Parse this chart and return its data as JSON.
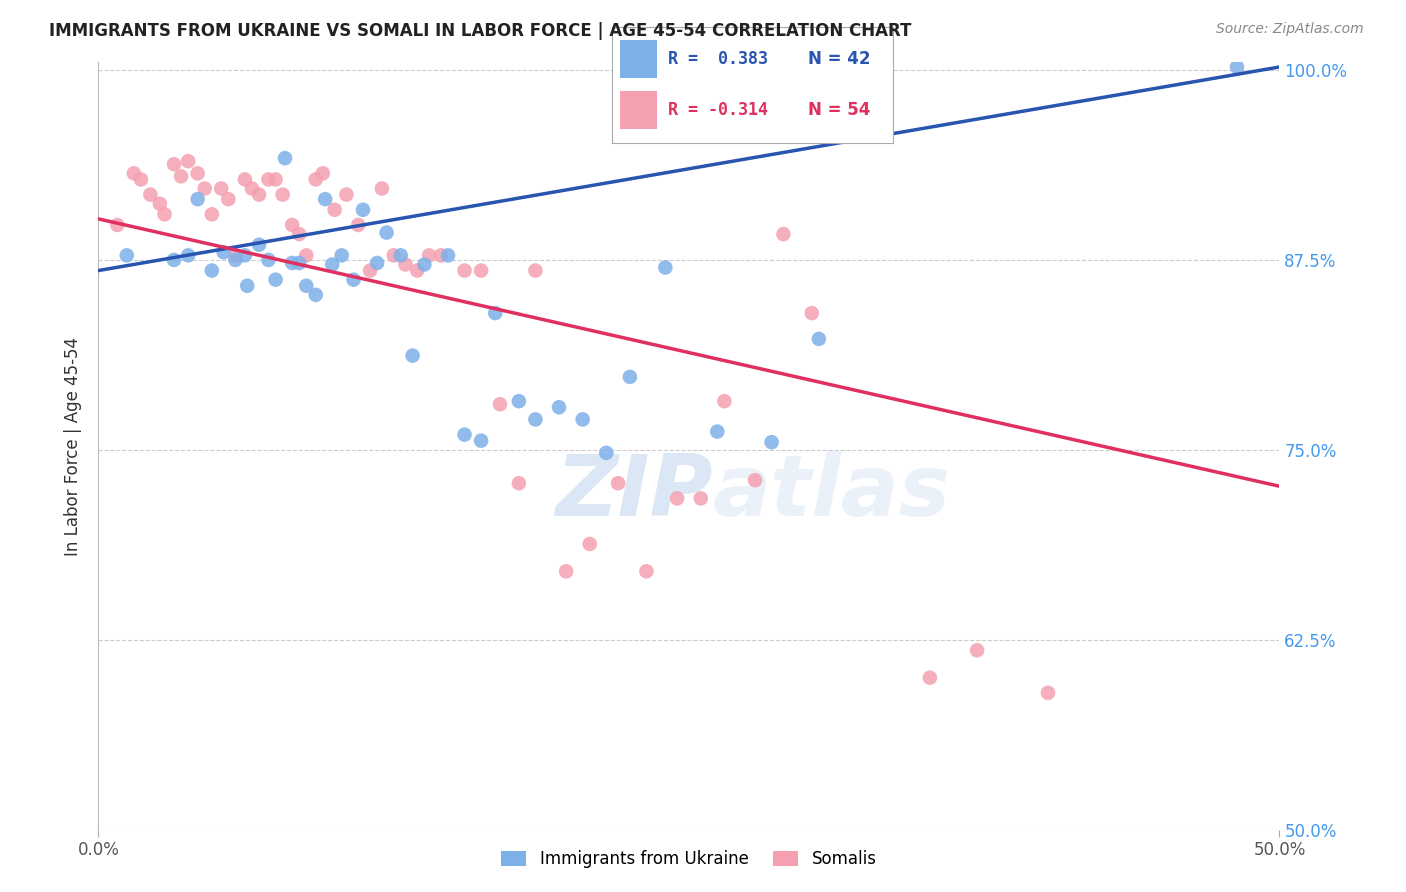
{
  "title": "IMMIGRANTS FROM UKRAINE VS SOMALI IN LABOR FORCE | AGE 45-54 CORRELATION CHART",
  "source": "Source: ZipAtlas.com",
  "ylabel": "In Labor Force | Age 45-54",
  "x_min": 0.0,
  "x_max": 0.5,
  "y_min": 0.5,
  "y_max": 1.005,
  "y_tick_labels": [
    "50.0%",
    "62.5%",
    "75.0%",
    "87.5%",
    "100.0%"
  ],
  "y_tick_values": [
    0.5,
    0.625,
    0.75,
    0.875,
    1.0
  ],
  "ukraine_color": "#7EB0E8",
  "somali_color": "#F4A0B0",
  "ukraine_line_color": "#2855B0",
  "somali_line_color": "#E03060",
  "legend_R_ukraine": "R =  0.383",
  "legend_N_ukraine": "N = 42",
  "legend_R_somali": "R = -0.314",
  "legend_N_somali": "N = 54",
  "watermark_zip": "ZIP",
  "watermark_atlas": "atlas",
  "ukraine_line_x0": 0.0,
  "ukraine_line_y0": 0.868,
  "ukraine_line_x1": 0.5,
  "ukraine_line_y1": 1.002,
  "somali_line_x0": 0.0,
  "somali_line_y0": 0.902,
  "somali_line_x1": 0.5,
  "somali_line_y1": 0.726,
  "ukraine_x": [
    0.012,
    0.032,
    0.038,
    0.042,
    0.048,
    0.053,
    0.058,
    0.062,
    0.063,
    0.068,
    0.072,
    0.075,
    0.079,
    0.082,
    0.085,
    0.088,
    0.092,
    0.096,
    0.099,
    0.103,
    0.108,
    0.112,
    0.118,
    0.122,
    0.128,
    0.133,
    0.138,
    0.148,
    0.155,
    0.162,
    0.168,
    0.178,
    0.185,
    0.195,
    0.205,
    0.215,
    0.225,
    0.24,
    0.262,
    0.285,
    0.305,
    0.482
  ],
  "ukraine_y": [
    0.878,
    0.875,
    0.878,
    0.915,
    0.868,
    0.88,
    0.875,
    0.878,
    0.858,
    0.885,
    0.875,
    0.862,
    0.942,
    0.873,
    0.873,
    0.858,
    0.852,
    0.915,
    0.872,
    0.878,
    0.862,
    0.908,
    0.873,
    0.893,
    0.878,
    0.812,
    0.872,
    0.878,
    0.76,
    0.756,
    0.84,
    0.782,
    0.77,
    0.778,
    0.77,
    0.748,
    0.798,
    0.87,
    0.762,
    0.755,
    0.823,
    1.002
  ],
  "somali_x": [
    0.008,
    0.015,
    0.018,
    0.022,
    0.026,
    0.028,
    0.032,
    0.035,
    0.038,
    0.042,
    0.045,
    0.048,
    0.052,
    0.055,
    0.058,
    0.062,
    0.065,
    0.068,
    0.072,
    0.075,
    0.078,
    0.082,
    0.085,
    0.088,
    0.092,
    0.095,
    0.1,
    0.105,
    0.11,
    0.115,
    0.12,
    0.125,
    0.13,
    0.135,
    0.14,
    0.145,
    0.155,
    0.162,
    0.17,
    0.178,
    0.185,
    0.198,
    0.208,
    0.22,
    0.232,
    0.245,
    0.255,
    0.265,
    0.278,
    0.29,
    0.302,
    0.352,
    0.372,
    0.402
  ],
  "somali_y": [
    0.898,
    0.932,
    0.928,
    0.918,
    0.912,
    0.905,
    0.938,
    0.93,
    0.94,
    0.932,
    0.922,
    0.905,
    0.922,
    0.915,
    0.878,
    0.928,
    0.922,
    0.918,
    0.928,
    0.928,
    0.918,
    0.898,
    0.892,
    0.878,
    0.928,
    0.932,
    0.908,
    0.918,
    0.898,
    0.868,
    0.922,
    0.878,
    0.872,
    0.868,
    0.878,
    0.878,
    0.868,
    0.868,
    0.78,
    0.728,
    0.868,
    0.67,
    0.688,
    0.728,
    0.67,
    0.718,
    0.718,
    0.782,
    0.73,
    0.892,
    0.84,
    0.6,
    0.618,
    0.59
  ]
}
